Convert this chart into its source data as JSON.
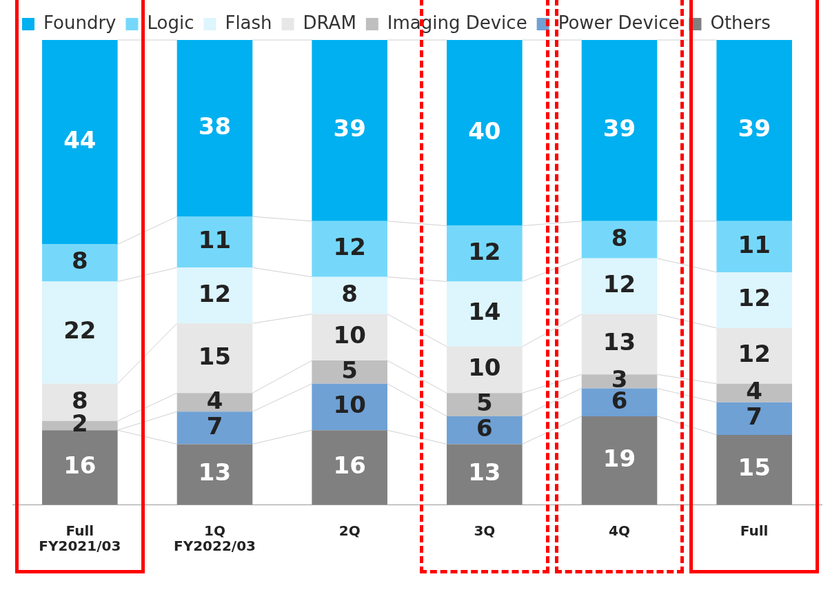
{
  "chart_data": {
    "type": "bar",
    "stacked": true,
    "categories": [
      "Full",
      "1Q",
      "2Q",
      "3Q",
      "4Q",
      "Full"
    ],
    "series": [
      {
        "name": "Others",
        "color": "#808080",
        "values": [
          16,
          13,
          16,
          13,
          19,
          15
        ]
      },
      {
        "name": "Power Device",
        "color": "#6fa1d5",
        "values": [
          null,
          7,
          10,
          6,
          6,
          7
        ]
      },
      {
        "name": "Imaging Device",
        "color": "#bfbfbf",
        "values": [
          2,
          4,
          5,
          5,
          3,
          4
        ]
      },
      {
        "name": "DRAM",
        "color": "#e7e7e7",
        "values": [
          8,
          15,
          10,
          10,
          13,
          12
        ]
      },
      {
        "name": "Flash",
        "color": "#ddf5fd",
        "values": [
          22,
          12,
          8,
          14,
          12,
          12
        ]
      },
      {
        "name": "Logic",
        "color": "#75d8fa",
        "values": [
          8,
          11,
          12,
          12,
          8,
          11
        ]
      },
      {
        "name": "Foundry",
        "color": "#00b0f0",
        "values": [
          44,
          38,
          39,
          40,
          39,
          39
        ]
      }
    ],
    "legend": "top",
    "data_labels": true,
    "annotations": [
      "FY2021/03",
      "FY2022/03"
    ]
  }
}
